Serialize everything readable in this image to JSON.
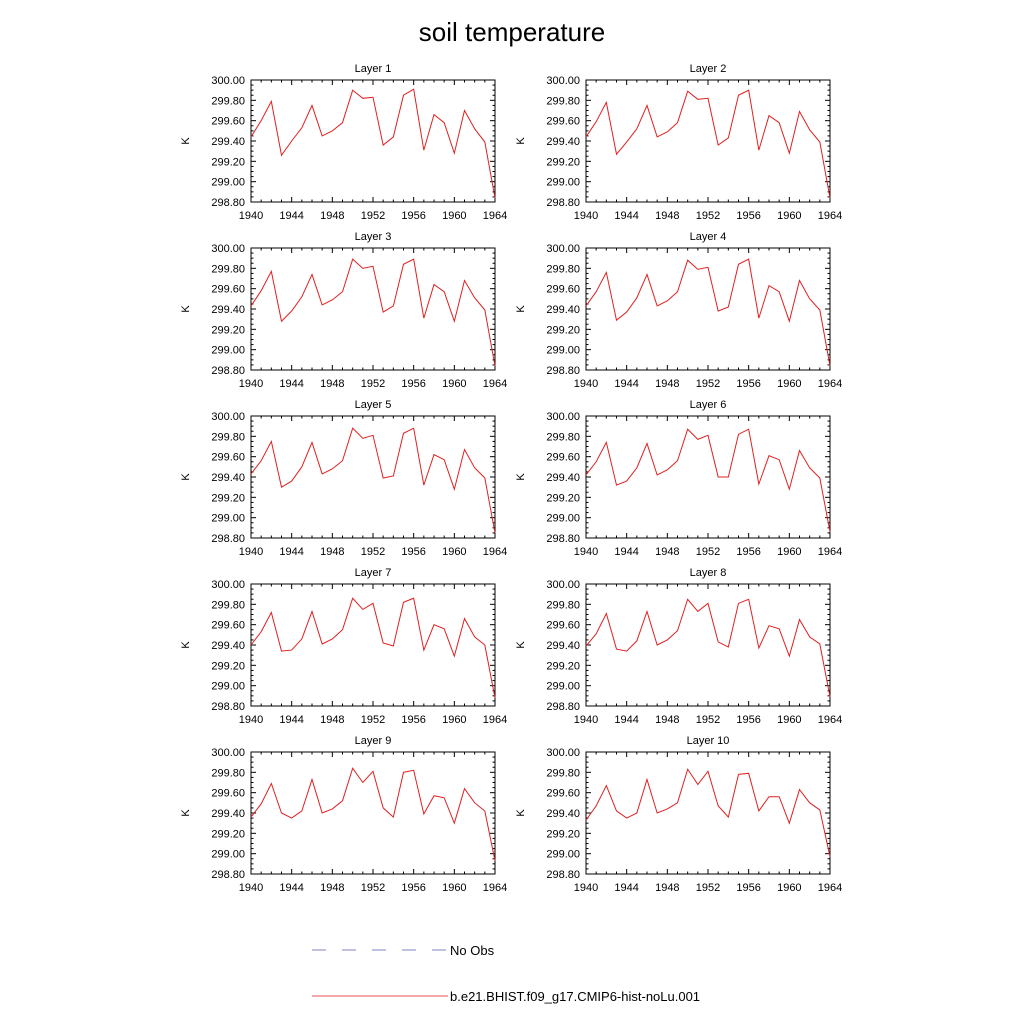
{
  "title": "soil temperature",
  "legend": {
    "items": [
      {
        "label": "No Obs",
        "color": "#8080c0",
        "style": "dashed"
      },
      {
        "label": "b.e21.BHIST.f09_g17.CMIP6-hist-noLu.001",
        "color": "#e05050",
        "style": "solid"
      }
    ]
  },
  "chart_data": {
    "type": "line",
    "title": "soil temperature",
    "grid": false,
    "legend_placement": "bottom-center",
    "x": [
      1940,
      1941,
      1942,
      1943,
      1944,
      1945,
      1946,
      1947,
      1948,
      1949,
      1950,
      1951,
      1952,
      1953,
      1954,
      1955,
      1956,
      1957,
      1958,
      1959,
      1960,
      1961,
      1962,
      1963,
      1964
    ],
    "xticks": [
      "1940",
      "1944",
      "1948",
      "1952",
      "1956",
      "1960",
      "1964"
    ],
    "yticks": [
      "298.80",
      "299.00",
      "299.20",
      "299.40",
      "299.60",
      "299.80",
      "300.00"
    ],
    "xlim": [
      1940,
      1964
    ],
    "ylim": [
      298.8,
      300.0
    ],
    "panels": [
      {
        "title": "Layer 1",
        "ylabel": "K",
        "series": [
          {
            "name": "b.e21.BHIST.f09_g17.CMIP6-hist-noLu.001",
            "color": "#e02020",
            "values": [
              299.44,
              299.6,
              299.79,
              299.26,
              299.4,
              299.53,
              299.75,
              299.45,
              299.5,
              299.58,
              299.9,
              299.82,
              299.83,
              299.36,
              299.44,
              299.85,
              299.91,
              299.31,
              299.66,
              299.58,
              299.28,
              299.7,
              299.52,
              299.39,
              298.84
            ]
          }
        ]
      },
      {
        "title": "Layer 2",
        "ylabel": "K",
        "series": [
          {
            "name": "b.e21.BHIST.f09_g17.CMIP6-hist-noLu.001",
            "color": "#e02020",
            "values": [
              299.44,
              299.59,
              299.78,
              299.27,
              299.39,
              299.52,
              299.75,
              299.44,
              299.49,
              299.58,
              299.89,
              299.81,
              299.82,
              299.36,
              299.43,
              299.85,
              299.9,
              299.31,
              299.65,
              299.58,
              299.28,
              299.69,
              299.51,
              299.39,
              298.84
            ]
          }
        ]
      },
      {
        "title": "Layer 3",
        "ylabel": "K",
        "series": [
          {
            "name": "b.e21.BHIST.f09_g17.CMIP6-hist-noLu.001",
            "color": "#e02020",
            "values": [
              299.43,
              299.58,
              299.77,
              299.28,
              299.38,
              299.52,
              299.74,
              299.44,
              299.49,
              299.57,
              299.89,
              299.8,
              299.82,
              299.37,
              299.43,
              299.84,
              299.89,
              299.31,
              299.64,
              299.57,
              299.28,
              299.68,
              299.51,
              299.39,
              298.84
            ]
          }
        ]
      },
      {
        "title": "Layer 4",
        "ylabel": "K",
        "series": [
          {
            "name": "b.e21.BHIST.f09_g17.CMIP6-hist-noLu.001",
            "color": "#e02020",
            "values": [
              299.43,
              299.57,
              299.76,
              299.29,
              299.37,
              299.51,
              299.74,
              299.43,
              299.48,
              299.57,
              299.88,
              299.79,
              299.81,
              299.38,
              299.42,
              299.84,
              299.89,
              299.31,
              299.63,
              299.57,
              299.28,
              299.68,
              299.5,
              299.39,
              298.84
            ]
          }
        ]
      },
      {
        "title": "Layer 5",
        "ylabel": "K",
        "series": [
          {
            "name": "b.e21.BHIST.f09_g17.CMIP6-hist-noLu.001",
            "color": "#e02020",
            "values": [
              299.43,
              299.56,
              299.75,
              299.3,
              299.36,
              299.5,
              299.74,
              299.43,
              299.48,
              299.56,
              299.88,
              299.78,
              299.81,
              299.39,
              299.41,
              299.83,
              299.88,
              299.32,
              299.62,
              299.57,
              299.28,
              299.67,
              299.49,
              299.39,
              298.85
            ]
          }
        ]
      },
      {
        "title": "Layer 6",
        "ylabel": "K",
        "series": [
          {
            "name": "b.e21.BHIST.f09_g17.CMIP6-hist-noLu.001",
            "color": "#e02020",
            "values": [
              299.42,
              299.55,
              299.74,
              299.32,
              299.36,
              299.49,
              299.73,
              299.42,
              299.47,
              299.56,
              299.87,
              299.77,
              299.81,
              299.4,
              299.4,
              299.82,
              299.87,
              299.33,
              299.61,
              299.57,
              299.28,
              299.66,
              299.49,
              299.39,
              298.86
            ]
          }
        ]
      },
      {
        "title": "Layer 7",
        "ylabel": "K",
        "series": [
          {
            "name": "b.e21.BHIST.f09_g17.CMIP6-hist-noLu.001",
            "color": "#e02020",
            "values": [
              299.4,
              299.53,
              299.72,
              299.34,
              299.35,
              299.46,
              299.73,
              299.41,
              299.46,
              299.55,
              299.86,
              299.75,
              299.81,
              299.42,
              299.39,
              299.82,
              299.86,
              299.35,
              299.6,
              299.56,
              299.29,
              299.66,
              299.48,
              299.4,
              298.88
            ]
          }
        ]
      },
      {
        "title": "Layer 8",
        "ylabel": "K",
        "series": [
          {
            "name": "b.e21.BHIST.f09_g17.CMIP6-hist-noLu.001",
            "color": "#e02020",
            "values": [
              299.39,
              299.51,
              299.71,
              299.36,
              299.34,
              299.44,
              299.73,
              299.4,
              299.45,
              299.54,
              299.85,
              299.73,
              299.81,
              299.43,
              299.38,
              299.81,
              299.85,
              299.37,
              299.59,
              299.56,
              299.29,
              299.65,
              299.48,
              299.41,
              298.89
            ]
          }
        ]
      },
      {
        "title": "Layer 9",
        "ylabel": "K",
        "series": [
          {
            "name": "b.e21.BHIST.f09_g17.CMIP6-hist-noLu.001",
            "color": "#e02020",
            "values": [
              299.36,
              299.49,
              299.69,
              299.4,
              299.35,
              299.42,
              299.73,
              299.4,
              299.44,
              299.52,
              299.84,
              299.7,
              299.81,
              299.45,
              299.36,
              299.8,
              299.82,
              299.39,
              299.57,
              299.55,
              299.3,
              299.64,
              299.5,
              299.42,
              298.93
            ]
          }
        ]
      },
      {
        "title": "Layer 10",
        "ylabel": "K",
        "series": [
          {
            "name": "b.e21.BHIST.f09_g17.CMIP6-hist-noLu.001",
            "color": "#e02020",
            "values": [
              299.33,
              299.47,
              299.67,
              299.42,
              299.35,
              299.4,
              299.73,
              299.4,
              299.44,
              299.5,
              299.83,
              299.68,
              299.81,
              299.47,
              299.36,
              299.78,
              299.79,
              299.42,
              299.56,
              299.56,
              299.3,
              299.63,
              299.5,
              299.43,
              298.97
            ]
          }
        ]
      }
    ]
  }
}
